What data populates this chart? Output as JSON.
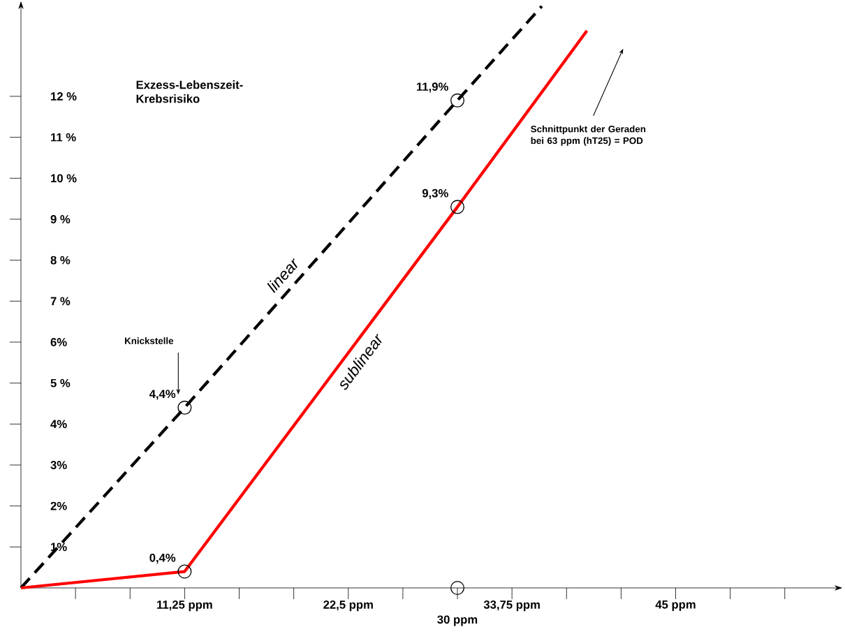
{
  "chart_data": {
    "type": "line",
    "ylabel": "Exzess-Lebenszeit-Krebsrisiko",
    "annotations": [
      "Knickstelle",
      "Schnittpunkt der Geraden bei  63 ppm (hT25) = POD",
      {
        "text": "30 ppm",
        "x": 30,
        "y": 0
      }
    ],
    "series": [
      {
        "name": "linear",
        "type": "line",
        "color": "#000000",
        "line_style": "dashed",
        "marker": "none",
        "x": [
          0,
          11.25,
          30,
          35.8
        ],
        "values": [
          0,
          4.4,
          11.9,
          14.2
        ]
      },
      {
        "name": "sublinear",
        "type": "line",
        "color": "#ff0000",
        "line_style": "solid",
        "marker": "none",
        "x": [
          0,
          11.25,
          30,
          38.9
        ],
        "values": [
          0,
          0.4,
          9.3,
          13.6
        ]
      },
      {
        "type": "scatter",
        "color": "#000000",
        "marker": "circle",
        "x": [
          11.25,
          30,
          11.25,
          30,
          30
        ],
        "values": [
          0.4,
          9.3,
          4.4,
          11.9,
          0
        ],
        "value_labels": [
          "0,4%",
          "9,3%",
          "4,4%",
          "11,9%",
          null
        ]
      }
    ],
    "xlim": [
      0,
      56.4
    ],
    "ylim": [
      0,
      14.3
    ],
    "xticks": [
      {
        "value": 3.75,
        "label": null
      },
      {
        "value": 7.5,
        "label": null
      },
      {
        "value": 11.25,
        "label": "11,25 ppm"
      },
      {
        "value": 15,
        "label": null
      },
      {
        "value": 18.75,
        "label": null
      },
      {
        "value": 22.5,
        "label": "22,5 ppm"
      },
      {
        "value": 26.25,
        "label": null
      },
      {
        "value": 30,
        "label": null
      },
      {
        "value": 33.75,
        "label": "33,75 ppm"
      },
      {
        "value": 37.5,
        "label": null
      },
      {
        "value": 41.25,
        "label": null
      },
      {
        "value": 45,
        "label": "45 ppm"
      },
      {
        "value": 48.75,
        "label": null
      },
      {
        "value": 52.5,
        "label": null
      }
    ],
    "yticks": [
      {
        "value": 1,
        "label": "1%"
      },
      {
        "value": 2,
        "label": "2%"
      },
      {
        "value": 3,
        "label": "3%"
      },
      {
        "value": 4,
        "label": "4%"
      },
      {
        "value": 5,
        "label": "5 %"
      },
      {
        "value": 6,
        "label": "6%"
      },
      {
        "value": 7,
        "label": "7 %"
      },
      {
        "value": 8,
        "label": "8 %"
      },
      {
        "value": 9,
        "label": "9 %"
      },
      {
        "value": 10,
        "label": "10 %"
      },
      {
        "value": 11,
        "label": "11 %"
      },
      {
        "value": 12,
        "label": "12 %"
      }
    ],
    "log": false
  }
}
